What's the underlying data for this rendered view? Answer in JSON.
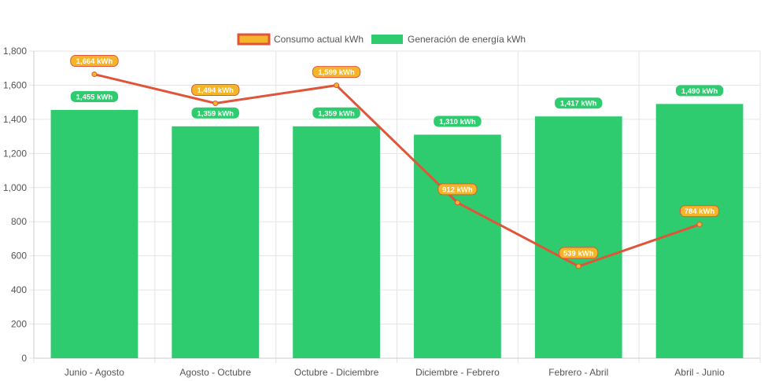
{
  "chart_data": {
    "type": "bar",
    "categories": [
      "Junio - Agosto",
      "Agosto - Octubre",
      "Octubre - Diciembre",
      "Diciembre - Febrero",
      "Febrero - Abril",
      "Abril - Junio"
    ],
    "series": [
      {
        "name": "Consumo actual kWh",
        "type": "line",
        "values": [
          1664,
          1494,
          1599,
          912,
          539,
          784
        ],
        "labels": [
          "1,664 kWh",
          "1,494 kWh",
          "1,599 kWh",
          "912 kWh",
          "539 kWh",
          "784 kWh"
        ],
        "color": "#e0553a",
        "label_color": "#f5b52a",
        "label_border": "#e0553a"
      },
      {
        "name": "Generación de energía kWh",
        "type": "bar",
        "values": [
          1455,
          1359,
          1359,
          1310,
          1417,
          1490
        ],
        "labels": [
          "1,455 kWh",
          "1,359 kWh",
          "1,359 kWh",
          "1,310 kWh",
          "1,417 kWh",
          "1,490 kWh"
        ],
        "color": "#2ecc6f"
      }
    ],
    "ylim": [
      0,
      1800
    ],
    "yticks": [
      "0",
      "200",
      "400",
      "600",
      "800",
      "1,000",
      "1,200",
      "1,400",
      "1,600",
      "1,800"
    ],
    "ytick_values": [
      0,
      200,
      400,
      600,
      800,
      1000,
      1200,
      1400,
      1600,
      1800
    ],
    "grid": true,
    "legend_position": "top"
  }
}
